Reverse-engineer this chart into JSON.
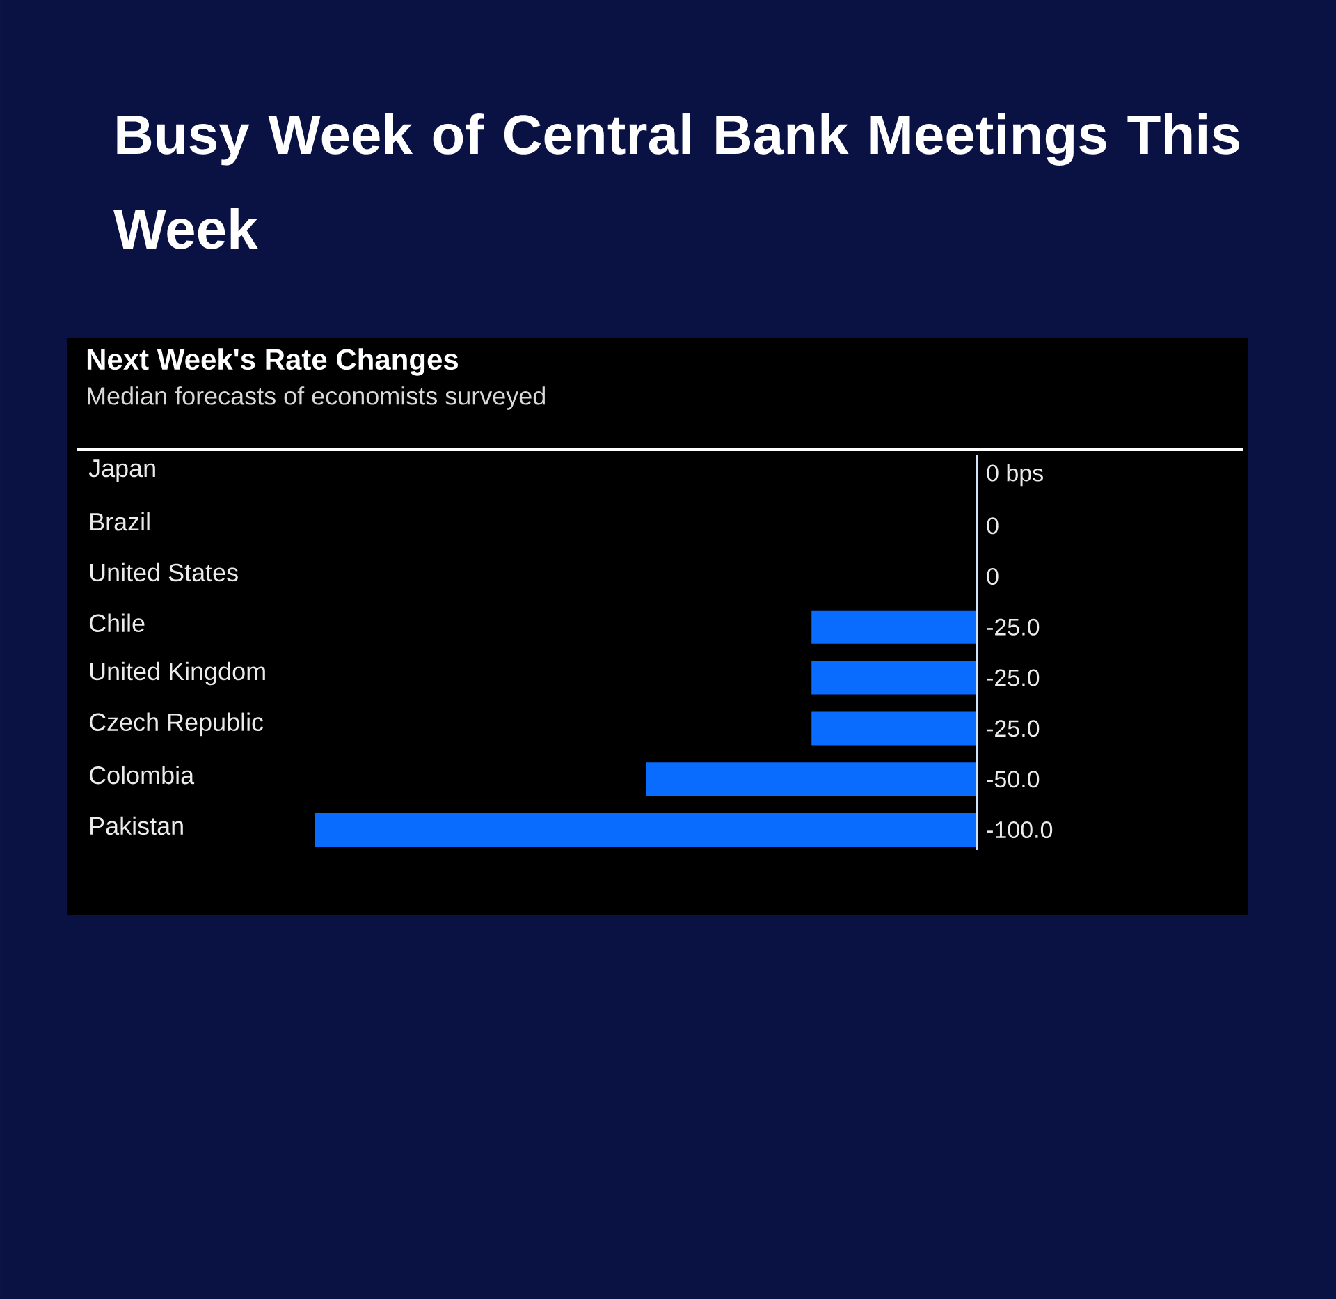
{
  "chart_data": {
    "type": "bar",
    "orientation": "horizontal",
    "title": "Busy Week of Central Bank Meetings This Week",
    "subtitle": "Next Week's Rate Changes",
    "annotations": [
      "Median forecasts of economists surveyed"
    ],
    "categories": [
      "Japan",
      "Brazil",
      "United States",
      "Chile",
      "United Kingdom",
      "Czech Republic",
      "Colombia",
      "Pakistan"
    ],
    "values": [
      0,
      0,
      0,
      -25,
      -25,
      -25,
      -50,
      -100
    ],
    "value_labels": [
      "0 bps",
      "0",
      "0",
      "-25.0",
      "-25.0",
      "-25.0",
      "-50.0",
      "-100.0"
    ],
    "color": "#0a6cff",
    "ref_lines": [
      {
        "axis": "x",
        "value": 0,
        "color": "#cfe3ff"
      }
    ]
  }
}
